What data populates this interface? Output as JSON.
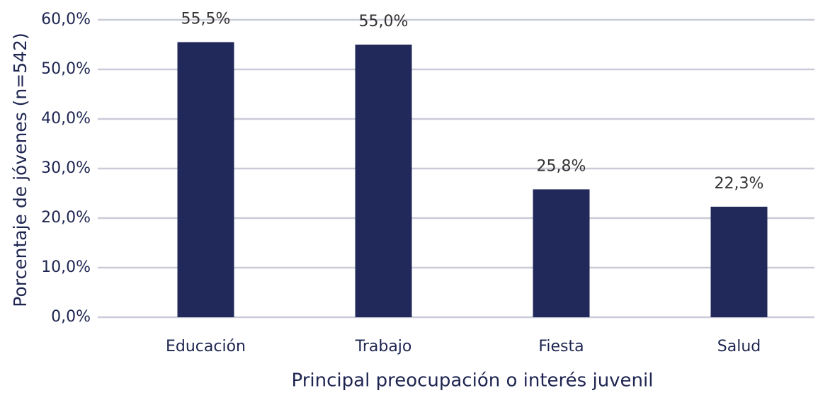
{
  "chart_data": {
    "type": "bar",
    "x_label": "Principal preocupación o interés juvenil",
    "y_label": "Porcentaje de jóvenes (n=542)",
    "categories": [
      "Educación",
      "Trabajo",
      "Fiesta",
      "Salud"
    ],
    "values": [
      55.5,
      55.0,
      25.8,
      22.3
    ],
    "value_labels": [
      "55,5%",
      "55,0%",
      "25,8%",
      "22,3%"
    ],
    "color": "#21285a",
    "ylim": [
      0,
      60
    ],
    "yticks": [
      {
        "value": 0,
        "label": "0,0%"
      },
      {
        "value": 10,
        "label": "10,0%"
      },
      {
        "value": 20,
        "label": "20,0%"
      },
      {
        "value": 30,
        "label": "30,0%"
      },
      {
        "value": 40,
        "label": "40,0%"
      },
      {
        "value": 50,
        "label": "50,0%"
      },
      {
        "value": 60,
        "label": "60,0%"
      }
    ],
    "grid": true
  }
}
